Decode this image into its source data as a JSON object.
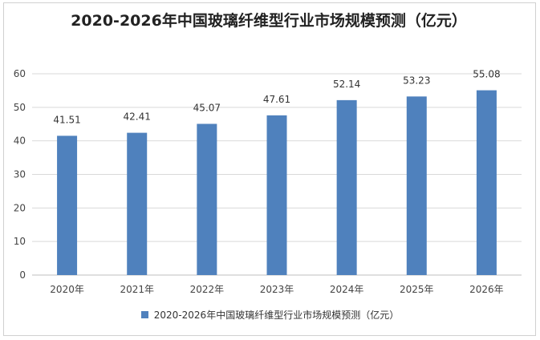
{
  "chart_data": {
    "type": "bar",
    "title": "2020-2026年中国玻璃纤维型行业市场规模预测（亿元）",
    "categories": [
      "2020年",
      "2021年",
      "2022年",
      "2023年",
      "2024年",
      "2025年",
      "2026年"
    ],
    "series": [
      {
        "name": "2020-2026年中国玻璃纤维型行业市场规模预测（亿元）",
        "values": [
          41.51,
          42.41,
          45.07,
          47.61,
          52.14,
          53.23,
          55.08
        ],
        "labels": [
          "41.51",
          "42.41",
          "45.07",
          "47.61",
          "52.14",
          "53.23",
          "55.08"
        ],
        "color": "#4f81bd"
      }
    ],
    "ylim": [
      0,
      60
    ],
    "yticks": [
      "0",
      "10",
      "20",
      "30",
      "40",
      "50",
      "60"
    ],
    "xlabel": "",
    "ylabel": "",
    "grid": true,
    "legend_position": "bottom"
  }
}
